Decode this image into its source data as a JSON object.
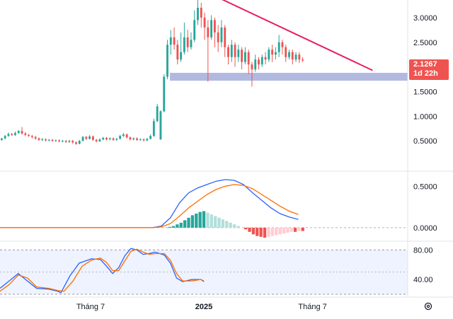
{
  "chart_data": {
    "type": "candlestick",
    "main": {
      "y_ticks": [
        "3.0000",
        "2.5000",
        "1.5000",
        "1.0000",
        "0.5000"
      ],
      "ylim": [
        0.0,
        3.3
      ],
      "last_price_label": "2.1267",
      "countdown_label": "1d 22h",
      "colors": {
        "up": "#26a69a",
        "down": "#ef5350",
        "trendline": "#e91e63",
        "zone": "#9fa8da"
      },
      "trendline": [
        [
          0.56,
          3.37
        ],
        [
          0.94,
          1.93
        ]
      ],
      "support_zone": [
        1.72,
        1.88
      ],
      "candles": [
        [
          0.52,
          0.55,
          0.5,
          0.56
        ],
        [
          0.55,
          0.6,
          0.53,
          0.62
        ],
        [
          0.6,
          0.64,
          0.58,
          0.67
        ],
        [
          0.64,
          0.62,
          0.6,
          0.66
        ],
        [
          0.62,
          0.66,
          0.6,
          0.69
        ],
        [
          0.66,
          0.7,
          0.64,
          0.72
        ],
        [
          0.7,
          0.65,
          0.63,
          0.78
        ],
        [
          0.65,
          0.62,
          0.6,
          0.68
        ],
        [
          0.62,
          0.6,
          0.58,
          0.64
        ],
        [
          0.6,
          0.58,
          0.55,
          0.62
        ],
        [
          0.58,
          0.55,
          0.52,
          0.6
        ],
        [
          0.55,
          0.52,
          0.5,
          0.57
        ],
        [
          0.52,
          0.53,
          0.5,
          0.56
        ],
        [
          0.53,
          0.51,
          0.49,
          0.55
        ],
        [
          0.51,
          0.52,
          0.49,
          0.54
        ],
        [
          0.52,
          0.5,
          0.48,
          0.54
        ],
        [
          0.5,
          0.51,
          0.48,
          0.53
        ],
        [
          0.51,
          0.49,
          0.47,
          0.53
        ],
        [
          0.49,
          0.5,
          0.47,
          0.52
        ],
        [
          0.5,
          0.48,
          0.46,
          0.52
        ],
        [
          0.48,
          0.5,
          0.46,
          0.52
        ],
        [
          0.5,
          0.47,
          0.44,
          0.52
        ],
        [
          0.47,
          0.44,
          0.42,
          0.49
        ],
        [
          0.44,
          0.5,
          0.43,
          0.52
        ],
        [
          0.5,
          0.58,
          0.49,
          0.6
        ],
        [
          0.58,
          0.54,
          0.52,
          0.6
        ],
        [
          0.54,
          0.59,
          0.53,
          0.62
        ],
        [
          0.59,
          0.52,
          0.5,
          0.61
        ],
        [
          0.52,
          0.49,
          0.47,
          0.54
        ],
        [
          0.49,
          0.53,
          0.48,
          0.55
        ],
        [
          0.53,
          0.56,
          0.51,
          0.58
        ],
        [
          0.56,
          0.53,
          0.51,
          0.58
        ],
        [
          0.53,
          0.55,
          0.51,
          0.57
        ],
        [
          0.55,
          0.52,
          0.5,
          0.57
        ],
        [
          0.52,
          0.54,
          0.5,
          0.56
        ],
        [
          0.54,
          0.6,
          0.53,
          0.62
        ],
        [
          0.6,
          0.63,
          0.58,
          0.66
        ],
        [
          0.63,
          0.57,
          0.55,
          0.65
        ],
        [
          0.57,
          0.53,
          0.51,
          0.59
        ],
        [
          0.53,
          0.55,
          0.51,
          0.57
        ],
        [
          0.55,
          0.52,
          0.5,
          0.57
        ],
        [
          0.52,
          0.53,
          0.5,
          0.55
        ],
        [
          0.53,
          0.51,
          0.49,
          0.55
        ],
        [
          0.51,
          0.54,
          0.49,
          0.56
        ],
        [
          0.54,
          0.6,
          0.53,
          0.63
        ],
        [
          0.6,
          0.9,
          0.58,
          0.95
        ],
        [
          0.9,
          1.2,
          0.88,
          1.25
        ],
        [
          0.53,
          1.1,
          0.52,
          1.12
        ],
        [
          1.1,
          1.8,
          1.08,
          1.85
        ],
        [
          1.8,
          2.45,
          1.75,
          2.55
        ],
        [
          2.45,
          2.6,
          2.25,
          2.75
        ],
        [
          2.6,
          2.45,
          2.35,
          2.8
        ],
        [
          2.45,
          2.15,
          2.05,
          2.55
        ],
        [
          2.15,
          2.3,
          2.1,
          2.7
        ],
        [
          2.3,
          2.6,
          2.25,
          2.9
        ],
        [
          2.6,
          2.4,
          2.3,
          2.75
        ],
        [
          2.4,
          2.55,
          2.35,
          2.7
        ],
        [
          2.55,
          2.95,
          2.5,
          3.15
        ],
        [
          2.95,
          3.2,
          2.85,
          3.4
        ],
        [
          3.2,
          3.0,
          2.8,
          3.3
        ],
        [
          3.0,
          2.8,
          2.55,
          3.1
        ],
        [
          2.8,
          2.6,
          1.7,
          2.95
        ],
        [
          2.6,
          2.95,
          2.55,
          3.05
        ],
        [
          2.95,
          2.7,
          2.4,
          3.0
        ],
        [
          2.7,
          2.5,
          2.3,
          2.85
        ],
        [
          2.5,
          2.8,
          2.4,
          2.95
        ],
        [
          2.8,
          2.4,
          2.2,
          2.85
        ],
        [
          2.4,
          2.2,
          2.05,
          2.45
        ],
        [
          2.2,
          2.45,
          2.1,
          2.55
        ],
        [
          2.45,
          2.2,
          2.0,
          2.5
        ],
        [
          2.2,
          2.35,
          2.1,
          2.45
        ],
        [
          2.35,
          2.1,
          1.95,
          2.4
        ],
        [
          2.1,
          2.3,
          2.05,
          2.4
        ],
        [
          2.3,
          2.05,
          1.85,
          2.35
        ],
        [
          2.05,
          1.95,
          1.6,
          2.1
        ],
        [
          1.95,
          2.15,
          1.9,
          2.25
        ],
        [
          2.15,
          2.05,
          1.95,
          2.2
        ],
        [
          2.05,
          2.2,
          2.0,
          2.25
        ],
        [
          2.2,
          2.15,
          2.05,
          2.3
        ],
        [
          2.15,
          2.35,
          2.1,
          2.4
        ],
        [
          2.35,
          2.25,
          2.1,
          2.45
        ],
        [
          2.25,
          2.3,
          2.15,
          2.4
        ],
        [
          2.3,
          2.5,
          2.2,
          2.65
        ],
        [
          2.5,
          2.4,
          2.25,
          2.55
        ],
        [
          2.4,
          2.2,
          2.1,
          2.45
        ],
        [
          2.2,
          2.3,
          2.15,
          2.35
        ],
        [
          2.3,
          2.15,
          2.05,
          2.35
        ],
        [
          2.15,
          2.25,
          2.1,
          2.3
        ],
        [
          2.25,
          2.15,
          2.08,
          2.3
        ],
        [
          2.15,
          2.13,
          2.1,
          2.2
        ]
      ]
    },
    "macd": {
      "y_ticks": [
        "0.5000",
        "0.0000"
      ],
      "ylim": [
        -0.12,
        0.63
      ],
      "colors": {
        "macd": "#2962ff",
        "signal": "#ff6d00",
        "hist_up_strong": "#26a69a",
        "hist_up_weak": "#b2dfdb",
        "hist_down_strong": "#ef5350",
        "hist_down_weak": "#ffcdd2"
      },
      "macd_line": [
        [
          0,
          0.0
        ],
        [
          0.2,
          0.0
        ],
        [
          0.4,
          0.0
        ],
        [
          0.5,
          0.0
        ],
        [
          0.53,
          0.02
        ],
        [
          0.56,
          0.12
        ],
        [
          0.59,
          0.3
        ],
        [
          0.62,
          0.42
        ],
        [
          0.65,
          0.48
        ],
        [
          0.68,
          0.52
        ],
        [
          0.71,
          0.56
        ],
        [
          0.74,
          0.58
        ],
        [
          0.77,
          0.57
        ],
        [
          0.8,
          0.52
        ],
        [
          0.83,
          0.42
        ],
        [
          0.86,
          0.33
        ],
        [
          0.89,
          0.24
        ],
        [
          0.92,
          0.17
        ],
        [
          0.95,
          0.13
        ],
        [
          0.98,
          0.1
        ]
      ],
      "signal_line": [
        [
          0,
          0.0
        ],
        [
          0.2,
          0.0
        ],
        [
          0.4,
          0.0
        ],
        [
          0.5,
          0.0
        ],
        [
          0.53,
          0.01
        ],
        [
          0.56,
          0.05
        ],
        [
          0.59,
          0.14
        ],
        [
          0.62,
          0.24
        ],
        [
          0.65,
          0.32
        ],
        [
          0.68,
          0.4
        ],
        [
          0.71,
          0.46
        ],
        [
          0.74,
          0.5
        ],
        [
          0.77,
          0.52
        ],
        [
          0.8,
          0.51
        ],
        [
          0.83,
          0.47
        ],
        [
          0.86,
          0.4
        ],
        [
          0.89,
          0.33
        ],
        [
          0.92,
          0.26
        ],
        [
          0.95,
          0.2
        ],
        [
          0.98,
          0.16
        ]
      ],
      "histogram": [
        0.0,
        0.0,
        0.0,
        0.0,
        0.0,
        0.0,
        0.0,
        0.0,
        0.0,
        0.0,
        0.0,
        0.0,
        0.0,
        0.0,
        0.0,
        0.0,
        0.0,
        0.0,
        0.0,
        0.0,
        0.0,
        0.0,
        0.0,
        0.0,
        0.0,
        0.0,
        0.0,
        0.0,
        0.0,
        0.0,
        0.0,
        0.0,
        0.0,
        0.0,
        0.0,
        0.0,
        0.0,
        0.0,
        0.0,
        0.0,
        0.0,
        0.0,
        0.0,
        0.0,
        0.01,
        0.02,
        0.04,
        0.06,
        0.09,
        0.12,
        0.15,
        0.17,
        0.19,
        0.2,
        0.18,
        0.16,
        0.14,
        0.12,
        0.1,
        0.08,
        0.06,
        0.04,
        0.02,
        0.0,
        -0.02,
        -0.05,
        -0.08,
        -0.1,
        -0.11,
        -0.12,
        -0.11,
        -0.1,
        -0.09,
        -0.08,
        -0.07,
        -0.06,
        -0.05,
        -0.05,
        -0.04,
        -0.04
      ]
    },
    "stoch": {
      "y_ticks": [
        "80.00",
        "40.00"
      ],
      "ylim": [
        20,
        87
      ],
      "band": [
        20,
        80
      ],
      "mid": 50,
      "colors": {
        "k": "#2962ff",
        "d": "#ff6d00",
        "band": "#2962ff"
      },
      "k_line": [
        [
          0,
          28
        ],
        [
          0.03,
          38
        ],
        [
          0.06,
          48
        ],
        [
          0.09,
          38
        ],
        [
          0.12,
          28
        ],
        [
          0.16,
          27
        ],
        [
          0.19,
          24
        ],
        [
          0.2,
          22
        ],
        [
          0.23,
          45
        ],
        [
          0.26,
          62
        ],
        [
          0.3,
          68
        ],
        [
          0.33,
          67
        ],
        [
          0.35,
          58
        ],
        [
          0.37,
          48
        ],
        [
          0.39,
          56
        ],
        [
          0.41,
          72
        ],
        [
          0.43,
          82
        ],
        [
          0.45,
          80
        ],
        [
          0.47,
          74
        ],
        [
          0.49,
          75
        ],
        [
          0.51,
          77
        ],
        [
          0.54,
          73
        ],
        [
          0.56,
          62
        ],
        [
          0.58,
          42
        ],
        [
          0.6,
          37
        ],
        [
          0.63,
          40
        ],
        [
          0.66,
          40
        ],
        [
          0.67,
          37
        ]
      ],
      "d_line": [
        [
          0,
          24
        ],
        [
          0.03,
          33
        ],
        [
          0.06,
          46
        ],
        [
          0.09,
          42
        ],
        [
          0.12,
          30
        ],
        [
          0.16,
          28
        ],
        [
          0.19,
          25
        ],
        [
          0.21,
          24
        ],
        [
          0.24,
          38
        ],
        [
          0.27,
          58
        ],
        [
          0.3,
          66
        ],
        [
          0.33,
          69
        ],
        [
          0.35,
          63
        ],
        [
          0.37,
          52
        ],
        [
          0.39,
          52
        ],
        [
          0.41,
          65
        ],
        [
          0.43,
          78
        ],
        [
          0.45,
          81
        ],
        [
          0.47,
          77
        ],
        [
          0.49,
          74
        ],
        [
          0.51,
          75
        ],
        [
          0.54,
          75
        ],
        [
          0.56,
          66
        ],
        [
          0.58,
          48
        ],
        [
          0.6,
          38
        ],
        [
          0.63,
          38
        ],
        [
          0.66,
          40
        ],
        [
          0.67,
          38
        ]
      ]
    },
    "x_ticks": [
      {
        "label": "Tháng 7",
        "pos": 0.2
      },
      {
        "label": "2025",
        "pos": 0.45,
        "bold": true
      },
      {
        "label": "Tháng 7",
        "pos": 0.69
      }
    ]
  }
}
